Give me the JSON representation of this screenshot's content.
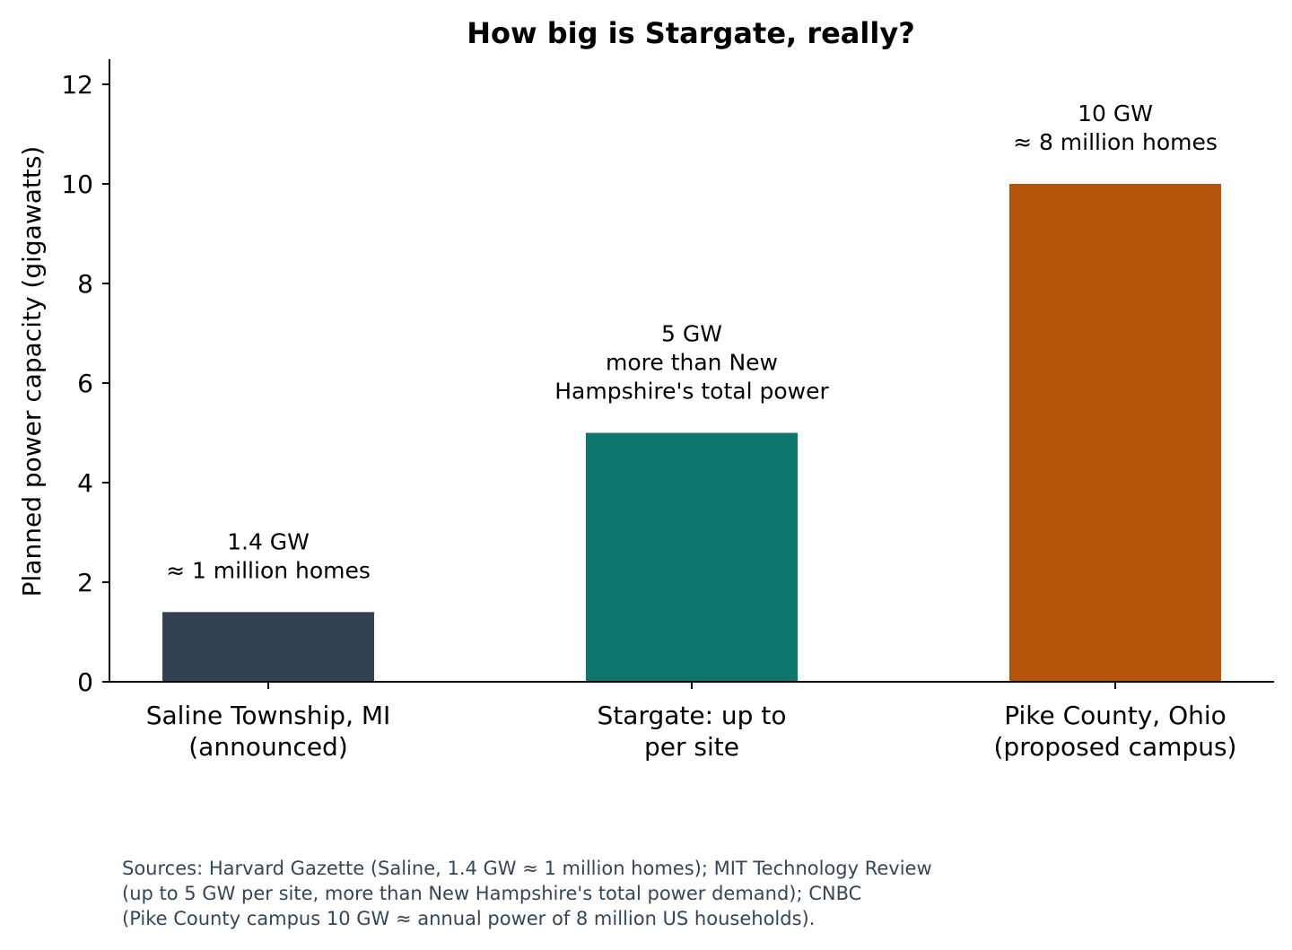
{
  "chart_data": {
    "type": "bar",
    "title": "How big is Stargate, really?",
    "xlabel": "",
    "ylabel": "Planned power capacity (gigawatts)",
    "ylim": [
      0,
      12.5
    ],
    "yticks": [
      0,
      2,
      4,
      6,
      8,
      10,
      12
    ],
    "grid": false,
    "categories": [
      [
        "Saline Township, MI",
        "(announced)"
      ],
      [
        "Stargate: up to",
        "per site"
      ],
      [
        "Pike County, Ohio",
        "(proposed campus)"
      ]
    ],
    "values": [
      1.4,
      5,
      10
    ],
    "colors": [
      "#334155",
      "#0f766e",
      "#b45309"
    ],
    "annotations": [
      [
        "1.4 GW",
        "≈ 1 million homes"
      ],
      [
        "5 GW",
        "more than New",
        "Hampshire's total power"
      ],
      [
        "10 GW",
        "≈ 8 million homes"
      ]
    ]
  },
  "source_note": [
    "Sources: Harvard Gazette (Saline, 1.4 GW ≈ 1 million homes); MIT Technology Review",
    "(up to 5 GW per site, more than New Hampshire's total power demand); CNBC",
    "(Pike County campus 10 GW ≈ annual power of 8 million US households)."
  ]
}
